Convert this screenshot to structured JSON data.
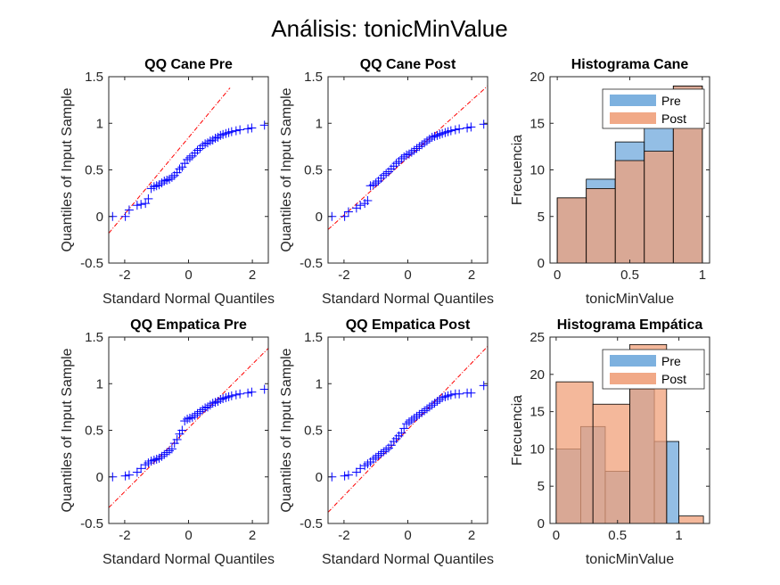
{
  "figure": {
    "title": "Análisis: tonicMinValue"
  },
  "colors": {
    "qq_marker": "#0000ff",
    "qq_refline": "#ff0000",
    "pre_fill": "#6fa8dc",
    "post_fill": "#f0a07a",
    "overlap_fill": "#a9827a",
    "axis": "#262626"
  },
  "chart_data": [
    {
      "id": "qq_cane_pre",
      "type": "scatter",
      "title": "QQ Cane Pre",
      "xlabel": "Standard Normal Quantiles",
      "ylabel": "Quantiles of Input Sample",
      "xlim": [
        -2.5,
        2.5
      ],
      "ylim": [
        -0.5,
        1.5
      ],
      "xticks": [
        -2,
        0,
        2
      ],
      "yticks": [
        -0.5,
        0,
        0.5,
        1,
        1.5
      ],
      "xticklabels": [
        "-2",
        "0",
        "2"
      ],
      "yticklabels": [
        "-0.5",
        "0",
        "0.5",
        "1",
        "1.5"
      ],
      "ref_line": {
        "x": [
          -2.5,
          1.3
        ],
        "y": [
          -0.18,
          1.38
        ]
      },
      "points": {
        "x": [
          -2.38,
          -1.98,
          -1.86,
          -1.61,
          -1.49,
          -1.35,
          -1.26,
          -1.17,
          -1.08,
          -1.0,
          -0.92,
          -0.84,
          -0.76,
          -0.68,
          -0.6,
          -0.52,
          -0.44,
          -0.36,
          -0.28,
          -0.2,
          -0.12,
          -0.04,
          0.04,
          0.12,
          0.2,
          0.28,
          0.36,
          0.44,
          0.52,
          0.6,
          0.68,
          0.76,
          0.84,
          0.92,
          1.0,
          1.08,
          1.17,
          1.26,
          1.35,
          1.49,
          1.61,
          1.86,
          1.98,
          2.38
        ],
        "y": [
          0.0,
          0.0,
          0.07,
          0.12,
          0.13,
          0.14,
          0.19,
          0.3,
          0.32,
          0.33,
          0.34,
          0.36,
          0.38,
          0.39,
          0.4,
          0.42,
          0.44,
          0.47,
          0.51,
          0.53,
          0.57,
          0.61,
          0.63,
          0.65,
          0.68,
          0.71,
          0.73,
          0.76,
          0.78,
          0.79,
          0.81,
          0.82,
          0.84,
          0.85,
          0.87,
          0.88,
          0.89,
          0.9,
          0.91,
          0.92,
          0.93,
          0.94,
          0.95,
          0.98
        ]
      }
    },
    {
      "id": "qq_cane_post",
      "type": "scatter",
      "title": "QQ Cane Post",
      "xlabel": "Standard Normal Quantiles",
      "ylabel": "Quantiles of Input Sample",
      "xlim": [
        -2.5,
        2.5
      ],
      "ylim": [
        -0.5,
        1.5
      ],
      "xticks": [
        -2,
        0,
        2
      ],
      "yticks": [
        -0.5,
        0,
        0.5,
        1,
        1.5
      ],
      "xticklabels": [
        "-2",
        "0",
        "2"
      ],
      "yticklabels": [
        "-0.5",
        "0",
        "0.5",
        "1",
        "1.5"
      ],
      "ref_line": {
        "x": [
          -2.5,
          2.5
        ],
        "y": [
          -0.14,
          1.4
        ]
      },
      "points": {
        "x": [
          -2.38,
          -1.98,
          -1.86,
          -1.61,
          -1.49,
          -1.35,
          -1.26,
          -1.17,
          -1.08,
          -1.0,
          -0.92,
          -0.84,
          -0.76,
          -0.68,
          -0.6,
          -0.52,
          -0.44,
          -0.36,
          -0.28,
          -0.2,
          -0.12,
          -0.04,
          0.04,
          0.12,
          0.2,
          0.28,
          0.36,
          0.44,
          0.52,
          0.6,
          0.68,
          0.76,
          0.84,
          0.92,
          1.0,
          1.08,
          1.17,
          1.26,
          1.35,
          1.49,
          1.61,
          1.86,
          1.98,
          2.38
        ],
        "y": [
          0.0,
          0.0,
          0.05,
          0.09,
          0.12,
          0.14,
          0.17,
          0.33,
          0.34,
          0.36,
          0.38,
          0.41,
          0.44,
          0.46,
          0.48,
          0.51,
          0.54,
          0.57,
          0.59,
          0.62,
          0.64,
          0.66,
          0.67,
          0.69,
          0.71,
          0.73,
          0.75,
          0.77,
          0.79,
          0.81,
          0.83,
          0.85,
          0.86,
          0.87,
          0.88,
          0.89,
          0.9,
          0.91,
          0.92,
          0.93,
          0.94,
          0.95,
          0.96,
          0.99
        ]
      }
    },
    {
      "id": "hist_cane",
      "type": "bar",
      "title": "Histograma Cane",
      "xlabel": "tonicMinValue",
      "ylabel": "Frecuencia",
      "xlim": [
        -0.05,
        1.05
      ],
      "ylim": [
        0,
        20
      ],
      "xticks": [
        0,
        0.5,
        1
      ],
      "yticks": [
        0,
        5,
        10,
        15,
        20
      ],
      "xticklabels": [
        "0",
        "0.5",
        "1"
      ],
      "yticklabels": [
        "0",
        "5",
        "10",
        "15",
        "20"
      ],
      "legend": {
        "position": "top-right",
        "entries": [
          "Pre",
          "Post"
        ]
      },
      "series": [
        {
          "name": "Pre",
          "edges": [
            0,
            0.2,
            0.4,
            0.6,
            0.8,
            1.0
          ],
          "values": [
            7,
            9,
            13,
            15,
            19
          ]
        },
        {
          "name": "Post",
          "edges": [
            0,
            0.2,
            0.4,
            0.6,
            0.8,
            1.0
          ],
          "values": [
            7,
            8,
            11,
            12,
            19
          ]
        }
      ]
    },
    {
      "id": "qq_empatica_pre",
      "type": "scatter",
      "title": "QQ Empatica Pre",
      "xlabel": "Standard Normal Quantiles",
      "ylabel": "Quantiles of Input Sample",
      "xlim": [
        -2.5,
        2.5
      ],
      "ylim": [
        -0.5,
        1.5
      ],
      "xticks": [
        -2,
        0,
        2
      ],
      "yticks": [
        -0.5,
        0,
        0.5,
        1,
        1.5
      ],
      "xticklabels": [
        "-2",
        "0",
        "2"
      ],
      "yticklabels": [
        "-0.5",
        "0",
        "0.5",
        "1",
        "1.5"
      ],
      "ref_line": {
        "x": [
          -2.5,
          2.5
        ],
        "y": [
          -0.33,
          1.38
        ]
      },
      "points": {
        "x": [
          -2.38,
          -1.98,
          -1.86,
          -1.61,
          -1.49,
          -1.35,
          -1.26,
          -1.17,
          -1.08,
          -1.0,
          -0.92,
          -0.84,
          -0.76,
          -0.68,
          -0.6,
          -0.52,
          -0.44,
          -0.36,
          -0.28,
          -0.2,
          -0.12,
          -0.04,
          0.04,
          0.12,
          0.2,
          0.28,
          0.36,
          0.44,
          0.52,
          0.6,
          0.68,
          0.76,
          0.84,
          0.92,
          1.0,
          1.08,
          1.17,
          1.26,
          1.35,
          1.49,
          1.61,
          1.86,
          1.98,
          2.38
        ],
        "y": [
          0.0,
          0.01,
          0.02,
          0.05,
          0.09,
          0.13,
          0.15,
          0.17,
          0.18,
          0.19,
          0.2,
          0.22,
          0.24,
          0.26,
          0.28,
          0.3,
          0.36,
          0.4,
          0.46,
          0.5,
          0.6,
          0.62,
          0.63,
          0.64,
          0.66,
          0.68,
          0.7,
          0.72,
          0.74,
          0.75,
          0.77,
          0.79,
          0.8,
          0.81,
          0.83,
          0.84,
          0.85,
          0.86,
          0.87,
          0.88,
          0.89,
          0.9,
          0.91,
          0.94
        ]
      }
    },
    {
      "id": "qq_empatica_post",
      "type": "scatter",
      "title": "QQ Empatica Post",
      "xlabel": "Standard Normal Quantiles",
      "ylabel": "Quantiles of Input Sample",
      "xlim": [
        -2.5,
        2.5
      ],
      "ylim": [
        -0.5,
        1.5
      ],
      "xticks": [
        -2,
        0,
        2
      ],
      "yticks": [
        -0.5,
        0,
        0.5,
        1,
        1.5
      ],
      "xticklabels": [
        "-2",
        "0",
        "2"
      ],
      "yticklabels": [
        "-0.5",
        "0",
        "0.5",
        "1",
        "1.5"
      ],
      "ref_line": {
        "x": [
          -2.5,
          2.5
        ],
        "y": [
          -0.38,
          1.4
        ]
      },
      "points": {
        "x": [
          -2.38,
          -1.98,
          -1.86,
          -1.61,
          -1.49,
          -1.35,
          -1.26,
          -1.17,
          -1.08,
          -1.0,
          -0.92,
          -0.84,
          -0.76,
          -0.68,
          -0.6,
          -0.52,
          -0.44,
          -0.36,
          -0.28,
          -0.2,
          -0.12,
          -0.04,
          0.04,
          0.12,
          0.2,
          0.28,
          0.36,
          0.44,
          0.52,
          0.6,
          0.68,
          0.76,
          0.84,
          0.92,
          1.0,
          1.08,
          1.17,
          1.26,
          1.35,
          1.49,
          1.61,
          1.86,
          1.98,
          2.38
        ],
        "y": [
          0.0,
          0.01,
          0.02,
          0.05,
          0.09,
          0.12,
          0.14,
          0.16,
          0.19,
          0.21,
          0.23,
          0.25,
          0.27,
          0.29,
          0.31,
          0.34,
          0.38,
          0.41,
          0.44,
          0.47,
          0.52,
          0.57,
          0.59,
          0.61,
          0.63,
          0.65,
          0.67,
          0.69,
          0.71,
          0.73,
          0.75,
          0.77,
          0.79,
          0.81,
          0.83,
          0.85,
          0.86,
          0.87,
          0.88,
          0.89,
          0.89,
          0.9,
          0.9,
          0.98
        ]
      }
    },
    {
      "id": "hist_empatica",
      "type": "bar",
      "title": "Histograma Empática",
      "xlabel": "tonicMinValue",
      "ylabel": "Frecuencia",
      "xlim": [
        -0.05,
        1.25
      ],
      "ylim": [
        0,
        25
      ],
      "xticks": [
        0,
        0.5,
        1
      ],
      "yticks": [
        0,
        5,
        10,
        15,
        20,
        25
      ],
      "xticklabels": [
        "0",
        "0.5",
        "1"
      ],
      "yticklabels": [
        "0",
        "5",
        "10",
        "15",
        "20",
        "25"
      ],
      "legend": {
        "position": "top-right",
        "entries": [
          "Pre",
          "Post"
        ]
      },
      "series": [
        {
          "name": "Pre",
          "edges": [
            0,
            0.2,
            0.4,
            0.6,
            0.8,
            0.9,
            1.0,
            1.2
          ],
          "values": [
            10,
            13,
            7,
            18,
            11,
            11,
            0
          ]
        },
        {
          "name": "Post",
          "edges": [
            0,
            0.3,
            0.6,
            0.9,
            1.0,
            1.2
          ],
          "values": [
            19,
            16,
            24,
            0,
            1
          ]
        }
      ]
    }
  ]
}
